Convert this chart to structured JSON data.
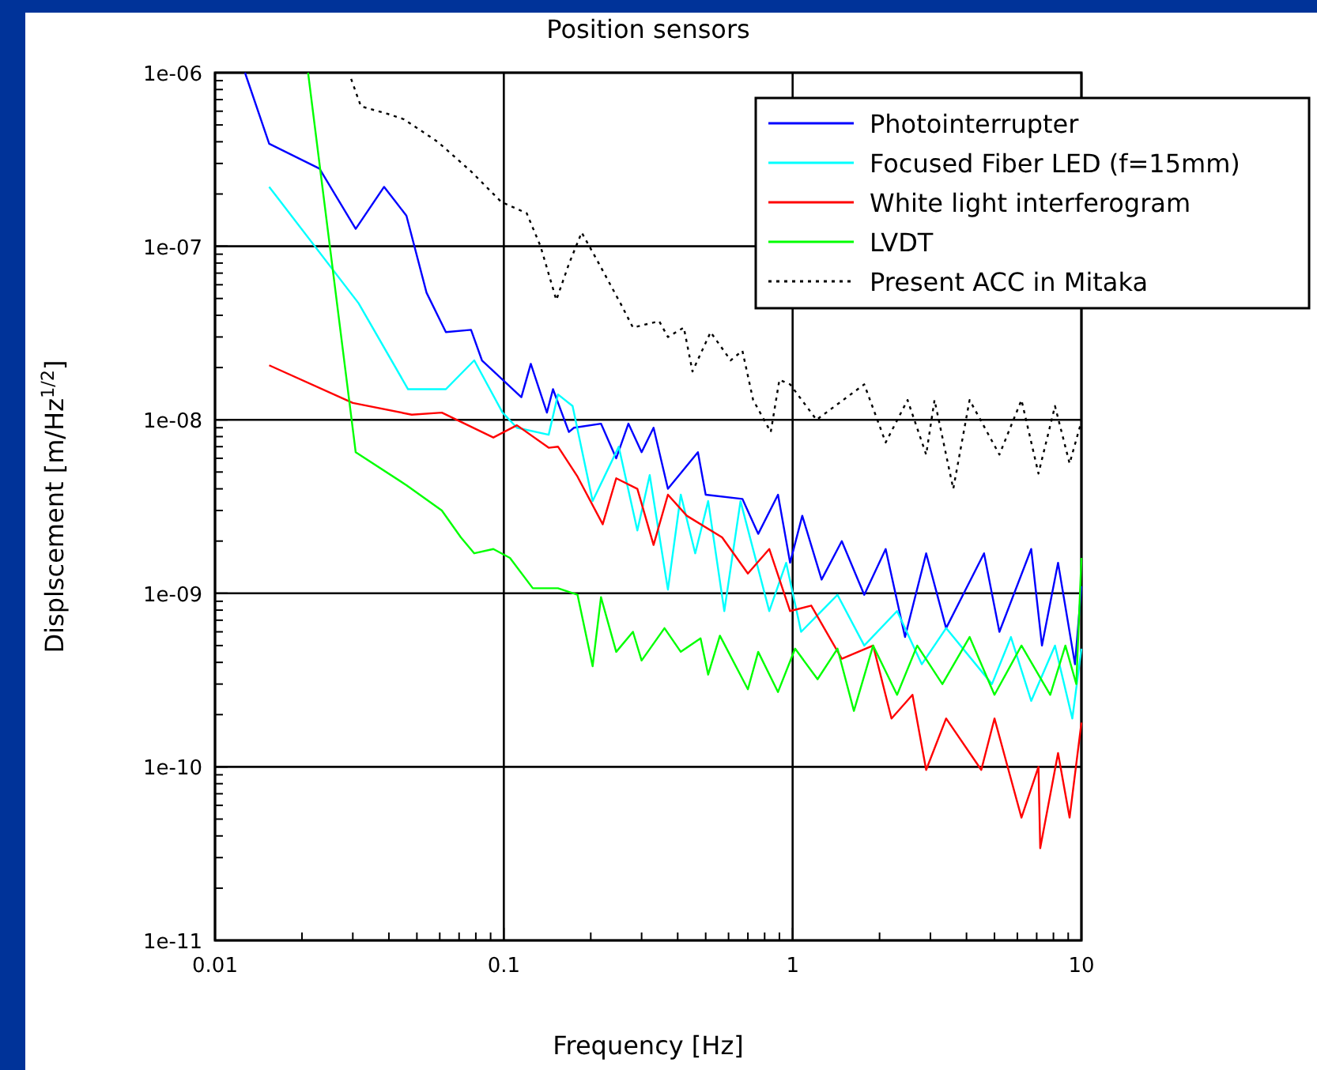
{
  "chart_data": {
    "type": "line",
    "title": "Position sensors",
    "xlabel": "Frequency [Hz]",
    "ylabel": "Displscement [m/Hz$^{1/2}$]",
    "log": "xy",
    "grid": true,
    "legend": "top right",
    "line_style": "solid",
    "marker": "none",
    "xlim": [
      0.01,
      10
    ],
    "ylim": [
      1e-11,
      1e-06
    ],
    "xticks": [
      0.01,
      {
        "value": 0.02,
        "label": null
      },
      {
        "value": 0.03,
        "label": null
      },
      {
        "value": 0.04,
        "label": null
      },
      {
        "value": 0.05,
        "label": null
      },
      {
        "value": 0.06,
        "label": null
      },
      {
        "value": 0.07,
        "label": null
      },
      {
        "value": 0.08,
        "label": null
      },
      {
        "value": 0.09,
        "label": null
      },
      0.1,
      {
        "value": 0.2,
        "label": null
      },
      {
        "value": 0.3,
        "label": null
      },
      {
        "value": 0.4,
        "label": null
      },
      {
        "value": 0.5,
        "label": null
      },
      {
        "value": 0.6,
        "label": null
      },
      {
        "value": 0.7,
        "label": null
      },
      {
        "value": 0.8,
        "label": null
      },
      {
        "value": 0.9,
        "label": null
      },
      1,
      {
        "value": 2,
        "label": null
      },
      {
        "value": 3,
        "label": null
      },
      {
        "value": 4,
        "label": null
      },
      {
        "value": 5,
        "label": null
      },
      {
        "value": 6,
        "label": null
      },
      {
        "value": 7,
        "label": null
      },
      {
        "value": 8,
        "label": null
      },
      {
        "value": 9,
        "label": null
      },
      10
    ],
    "yticks": [
      {
        "value": 1e-11,
        "label": "1e-11"
      },
      {
        "value": 2e-11,
        "label": null
      },
      {
        "value": 3e-11,
        "label": null
      },
      {
        "value": 4e-11,
        "label": null
      },
      {
        "value": 5e-11,
        "label": null
      },
      {
        "value": 6e-11,
        "label": null
      },
      {
        "value": 7e-11,
        "label": null
      },
      {
        "value": 8e-11,
        "label": null
      },
      {
        "value": 9e-11,
        "label": null
      },
      {
        "value": 1e-10,
        "label": "1e-10"
      },
      {
        "value": 2e-10,
        "label": null
      },
      {
        "value": 3e-10,
        "label": null
      },
      {
        "value": 4e-10,
        "label": null
      },
      {
        "value": 5e-10,
        "label": null
      },
      {
        "value": 6e-10,
        "label": null
      },
      {
        "value": 7e-10,
        "label": null
      },
      {
        "value": 8e-10,
        "label": null
      },
      {
        "value": 9e-10,
        "label": null
      },
      {
        "value": 1e-09,
        "label": "1e-09"
      },
      {
        "value": 2e-09,
        "label": null
      },
      {
        "value": 3e-09,
        "label": null
      },
      {
        "value": 4e-09,
        "label": null
      },
      {
        "value": 5e-09,
        "label": null
      },
      {
        "value": 6e-09,
        "label": null
      },
      {
        "value": 7e-09,
        "label": null
      },
      {
        "value": 8e-09,
        "label": null
      },
      {
        "value": 9e-09,
        "label": null
      },
      {
        "value": 1e-08,
        "label": "1e-08"
      },
      {
        "value": 2e-08,
        "label": null
      },
      {
        "value": 3e-08,
        "label": null
      },
      {
        "value": 4e-08,
        "label": null
      },
      {
        "value": 5e-08,
        "label": null
      },
      {
        "value": 6e-08,
        "label": null
      },
      {
        "value": 7e-08,
        "label": null
      },
      {
        "value": 8e-08,
        "label": null
      },
      {
        "value": 9e-08,
        "label": null
      },
      {
        "value": 1e-07,
        "label": "1e-07"
      },
      {
        "value": 2e-07,
        "label": null
      },
      {
        "value": 3e-07,
        "label": null
      },
      {
        "value": 4e-07,
        "label": null
      },
      {
        "value": 5e-07,
        "label": null
      },
      {
        "value": 6e-07,
        "label": null
      },
      {
        "value": 7e-07,
        "label": null
      },
      {
        "value": 8e-07,
        "label": null
      },
      {
        "value": 9e-07,
        "label": null
      },
      {
        "value": 1e-06,
        "label": "1e-06"
      }
    ],
    "series": [
      {
        "name": "Photointerrupter",
        "color": "#0000ff",
        "x": [
          0.0127,
          0.0154,
          0.023,
          0.0307,
          0.0385,
          0.046,
          0.054,
          0.063,
          0.077,
          0.084,
          0.115,
          0.124,
          0.141,
          0.148,
          0.168,
          0.175,
          0.217,
          0.245,
          0.27,
          0.3,
          0.33,
          0.37,
          0.47,
          0.5,
          0.67,
          0.76,
          0.89,
          0.98,
          1.08,
          1.26,
          1.48,
          1.77,
          2.1,
          2.45,
          2.9,
          3.4,
          4.6,
          5.2,
          6.7,
          7.3,
          8.3,
          9.5,
          10
        ],
        "values": [
          1e-06,
          3.9e-07,
          2.8e-07,
          1.26e-07,
          2.2e-07,
          1.5e-07,
          5.4e-08,
          3.2e-08,
          3.3e-08,
          2.2e-08,
          1.35e-08,
          2.1e-08,
          1.1e-08,
          1.5e-08,
          8.5e-09,
          9e-09,
          9.5e-09,
          6e-09,
          9.5e-09,
          6.5e-09,
          9e-09,
          4e-09,
          6.5e-09,
          3.7e-09,
          3.5e-09,
          2.2e-09,
          3.7e-09,
          1.5e-09,
          2.8e-09,
          1.2e-09,
          2e-09,
          9.8e-10,
          1.8e-09,
          5.6e-10,
          1.7e-09,
          6.3e-10,
          1.7e-09,
          6e-10,
          1.8e-09,
          5e-10,
          1.5e-09,
          3.9e-10,
          1.1e-09
        ]
      },
      {
        "name": "Focused Fiber LED (f=15mm)",
        "color": "#00ffff",
        "x": [
          0.0154,
          0.0314,
          0.0466,
          0.063,
          0.079,
          0.099,
          0.111,
          0.143,
          0.154,
          0.173,
          0.203,
          0.25,
          0.29,
          0.32,
          0.37,
          0.41,
          0.46,
          0.51,
          0.58,
          0.66,
          0.83,
          0.95,
          1.07,
          1.43,
          1.77,
          2.3,
          2.8,
          3.4,
          4.9,
          5.7,
          6.7,
          8.1,
          9.3,
          10
        ],
        "values": [
          2.2e-07,
          4.7e-08,
          1.5e-08,
          1.5e-08,
          2.2e-08,
          1.1e-08,
          9e-09,
          8.2e-09,
          1.4e-08,
          1.2e-08,
          3.4e-09,
          7e-09,
          2.3e-09,
          4.8e-09,
          1.05e-09,
          3.7e-09,
          1.7e-09,
          3.4e-09,
          7.9e-10,
          3.4e-09,
          7.9e-10,
          1.5e-09,
          6e-10,
          9.8e-10,
          5e-10,
          7.9e-10,
          3.9e-10,
          6.3e-10,
          3e-10,
          5.6e-10,
          2.4e-10,
          5e-10,
          1.9e-10,
          4.8e-10
        ]
      },
      {
        "name": "White light interferogram",
        "color": "#ff0000",
        "x": [
          0.0154,
          0.03,
          0.048,
          0.061,
          0.092,
          0.111,
          0.143,
          0.154,
          0.18,
          0.22,
          0.245,
          0.29,
          0.33,
          0.37,
          0.43,
          0.57,
          0.7,
          0.83,
          0.98,
          1.16,
          1.48,
          1.9,
          2.2,
          2.6,
          2.9,
          3.4,
          4.5,
          5,
          6.2,
          7.1,
          7.2,
          8.3,
          9.1,
          10
        ],
        "values": [
          2.06e-08,
          1.25e-08,
          1.07e-08,
          1.1e-08,
          7.9e-09,
          9.3e-09,
          6.9e-09,
          7e-09,
          4.7e-09,
          2.5e-09,
          4.6e-09,
          4e-09,
          1.9e-09,
          3.7e-09,
          2.8e-09,
          2.1e-09,
          1.3e-09,
          1.8e-09,
          7.9e-10,
          8.5e-10,
          4.2e-10,
          5e-10,
          1.9e-10,
          2.6e-10,
          9.6e-11,
          1.9e-10,
          9.6e-11,
          1.9e-10,
          5.1e-11,
          1e-10,
          3.4e-11,
          1.2e-10,
          5.1e-11,
          1.8e-10
        ]
      },
      {
        "name": "LVDT",
        "color": "#00ff00",
        "x": [
          0.021,
          0.0248,
          0.0307,
          0.046,
          0.061,
          0.071,
          0.079,
          0.092,
          0.105,
          0.126,
          0.154,
          0.18,
          0.203,
          0.217,
          0.245,
          0.28,
          0.3,
          0.36,
          0.41,
          0.48,
          0.51,
          0.56,
          0.7,
          0.76,
          0.89,
          1.02,
          1.22,
          1.43,
          1.63,
          1.9,
          2.3,
          2.7,
          3.3,
          4.1,
          5,
          6.2,
          7.8,
          8.8,
          9.6,
          10
        ],
        "values": [
          1e-06,
          1.1e-07,
          6.5e-09,
          4.2e-09,
          3e-09,
          2.1e-09,
          1.7e-09,
          1.8e-09,
          1.6e-09,
          1.07e-09,
          1.07e-09,
          9.8e-10,
          3.8e-10,
          9.5e-10,
          4.6e-10,
          6e-10,
          4.1e-10,
          6.3e-10,
          4.6e-10,
          5.5e-10,
          3.4e-10,
          5.7e-10,
          2.8e-10,
          4.6e-10,
          2.7e-10,
          4.8e-10,
          3.2e-10,
          4.8e-10,
          2.1e-10,
          5e-10,
          2.6e-10,
          5e-10,
          3e-10,
          5.6e-10,
          2.6e-10,
          5e-10,
          2.6e-10,
          5e-10,
          3e-10,
          1.6e-09
        ]
      },
      {
        "name": "Present ACC in Mitaka",
        "color": "#000000",
        "line_style": "dotted",
        "x": [
          0.0296,
          0.032,
          0.0395,
          0.045,
          0.059,
          0.077,
          0.098,
          0.12,
          0.134,
          0.152,
          0.168,
          0.186,
          0.208,
          0.255,
          0.28,
          0.345,
          0.37,
          0.42,
          0.45,
          0.52,
          0.61,
          0.67,
          0.73,
          0.84,
          0.9,
          0.98,
          1.21,
          1.77,
          2.1,
          2.5,
          2.9,
          3.1,
          3.6,
          4.1,
          5.2,
          6.2,
          7.1,
          8.1,
          9.1,
          10
        ],
        "values": [
          9.2e-07,
          6.4e-07,
          5.8e-07,
          5.4e-07,
          4e-07,
          2.7e-07,
          1.8e-07,
          1.55e-07,
          1e-07,
          4.9e-08,
          7.9e-08,
          1.2e-07,
          8.6e-08,
          4.6e-08,
          3.4e-08,
          3.7e-08,
          3e-08,
          3.4e-08,
          1.9e-08,
          3.2e-08,
          2.2e-08,
          2.5e-08,
          1.3e-08,
          8.5e-09,
          1.7e-08,
          1.6e-08,
          1e-08,
          1.6e-08,
          7.4e-09,
          1.3e-08,
          6.3e-09,
          1.3e-08,
          4e-09,
          1.3e-08,
          6.3e-09,
          1.3e-08,
          4.9e-09,
          1.2e-08,
          5.6e-09,
          9.8e-09
        ]
      }
    ]
  }
}
